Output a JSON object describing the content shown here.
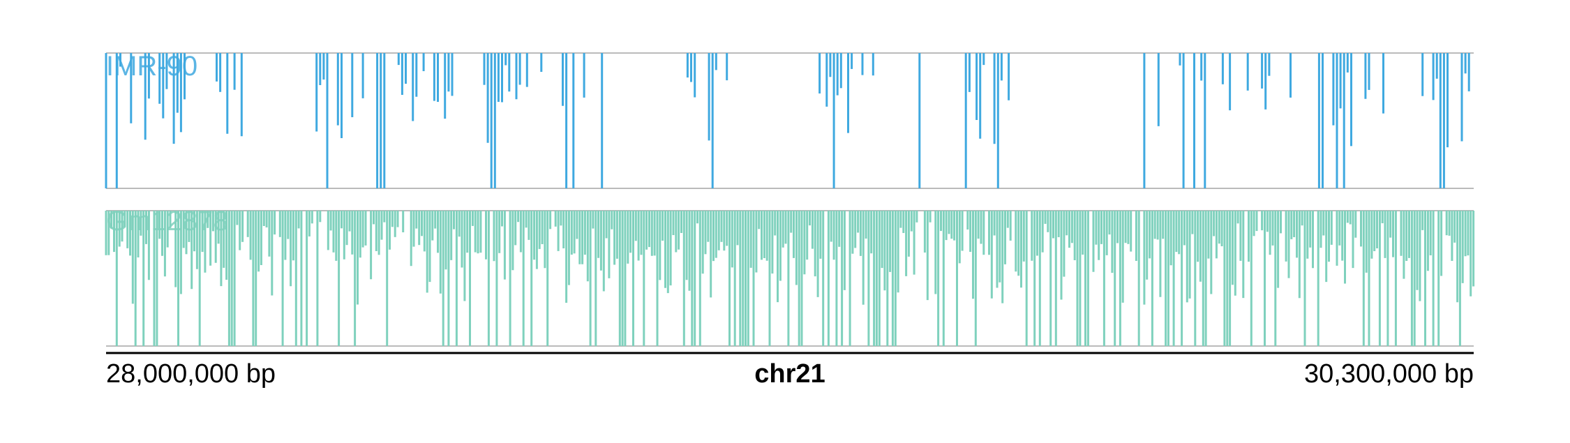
{
  "chart_data": {
    "type": "bar",
    "region": "chr21",
    "xlim": [
      28000000,
      30300000
    ],
    "x_units": "bp",
    "tick_labels": {
      "start": "28,000,000 bp",
      "center": "chr21",
      "end": "30,300,000 bp"
    },
    "grid": false,
    "tracks": [
      {
        "name": "IMR-90",
        "color": "#3fa9e0",
        "seed": 7,
        "dense_ranges": [
          [
            28000000,
            28140000
          ],
          [
            28170000,
            28230000
          ],
          [
            28350000,
            28600000
          ],
          [
            28640000,
            28800000
          ],
          [
            28970000,
            29030000
          ],
          [
            29200000,
            29260000
          ],
          [
            29230000,
            29290000
          ],
          [
            29440000,
            29520000
          ],
          [
            29770000,
            29890000
          ],
          [
            29920000,
            29960000
          ],
          [
            30040000,
            30140000
          ],
          [
            30210000,
            30300000
          ]
        ],
        "sparse_prob": 0.55,
        "bin_size": 6000
      },
      {
        "name": "Gm12878",
        "color": "#7fd1bd",
        "seed": 19,
        "dense_ranges": [
          [
            28000000,
            30300000
          ]
        ],
        "sparse_prob": 0.9,
        "bin_size": 4500
      }
    ]
  }
}
